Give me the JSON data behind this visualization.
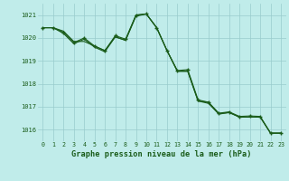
{
  "bg_color": "#c0ecea",
  "grid_color": "#99cccc",
  "line_color": "#1a5c1a",
  "title": "Graphe pression niveau de la mer (hPa)",
  "ylim": [
    1015.5,
    1021.5
  ],
  "yticks": [
    1016,
    1017,
    1018,
    1019,
    1020,
    1021
  ],
  "xticks": [
    0,
    1,
    2,
    3,
    4,
    5,
    6,
    7,
    8,
    9,
    10,
    11,
    12,
    13,
    14,
    15,
    16,
    17,
    18,
    19,
    20,
    21,
    22,
    23
  ],
  "series1_x": [
    0,
    1,
    2,
    3,
    4,
    5,
    6,
    7,
    8,
    9,
    10,
    11,
    12,
    13,
    14,
    15,
    16,
    17,
    18,
    19,
    20,
    21,
    22,
    23
  ],
  "series1_y": [
    1020.45,
    1020.45,
    1020.3,
    1019.85,
    1019.85,
    1019.65,
    1019.45,
    1020.05,
    1019.9,
    1020.95,
    1021.05,
    1020.45,
    1019.45,
    1018.55,
    1018.55,
    1017.25,
    1017.2,
    1016.7,
    1016.75,
    1016.55,
    1016.55,
    1016.55,
    1015.85,
    1015.85
  ],
  "series2_x": [
    0,
    1,
    2,
    3,
    4,
    5,
    6,
    7,
    8,
    9,
    10,
    11,
    12,
    13,
    14,
    15,
    16,
    17,
    18,
    19,
    20,
    21,
    22,
    23
  ],
  "series2_y": [
    1020.45,
    1020.45,
    1020.25,
    1019.8,
    1020.0,
    1019.65,
    1019.45,
    1020.1,
    1019.95,
    1021.0,
    1021.05,
    1020.45,
    1019.45,
    1018.58,
    1018.62,
    1017.3,
    1017.2,
    1016.72,
    1016.78,
    1016.58,
    1016.6,
    1016.58,
    1015.85,
    1015.85
  ],
  "series3_x": [
    0,
    1,
    2,
    3,
    4,
    5,
    6,
    7,
    8,
    9,
    10,
    11,
    12,
    13,
    14,
    15,
    16,
    17,
    18,
    19,
    20,
    21,
    22,
    23
  ],
  "series3_y": [
    1020.45,
    1020.45,
    1020.2,
    1019.75,
    1019.95,
    1019.6,
    1019.4,
    1020.05,
    1019.9,
    1021.0,
    1021.05,
    1020.45,
    1019.45,
    1018.55,
    1018.55,
    1017.25,
    1017.15,
    1016.68,
    1016.75,
    1016.55,
    1016.55,
    1016.55,
    1015.85,
    1015.85
  ],
  "marker_x": [
    0,
    1,
    2,
    3,
    4,
    5,
    6,
    7,
    8,
    9,
    10,
    11,
    12,
    13,
    14,
    15,
    16,
    17,
    18,
    19,
    20,
    21,
    22,
    23
  ],
  "marker_y": [
    1020.45,
    1020.45,
    1020.25,
    1019.8,
    1020.0,
    1019.65,
    1019.45,
    1020.1,
    1019.95,
    1021.0,
    1021.05,
    1020.45,
    1019.45,
    1018.58,
    1018.62,
    1017.3,
    1017.2,
    1016.72,
    1016.78,
    1016.58,
    1016.6,
    1016.58,
    1015.85,
    1015.85
  ]
}
